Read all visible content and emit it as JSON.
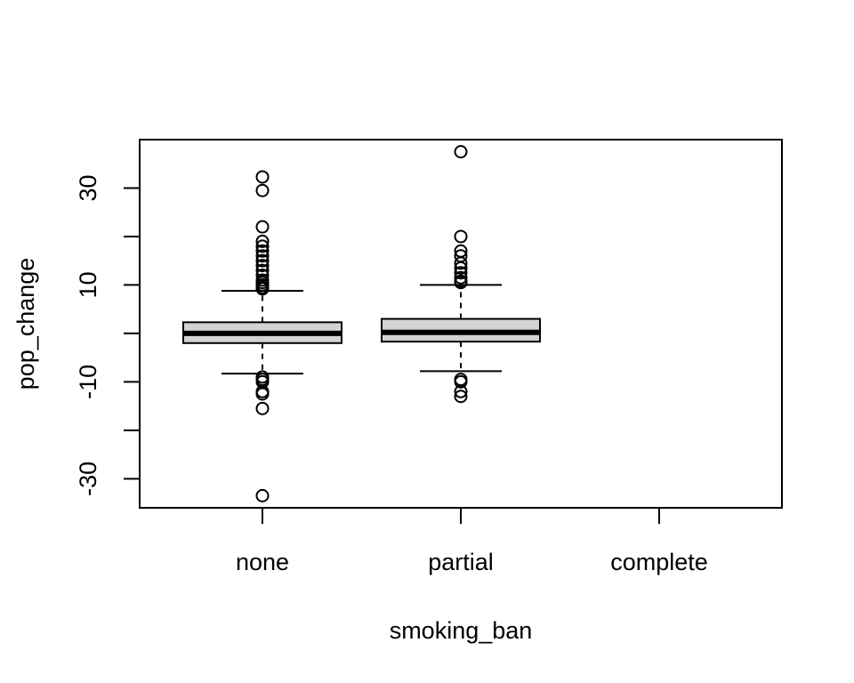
{
  "chart_data": {
    "type": "boxplot",
    "title": "",
    "xlabel": "smoking_ban",
    "ylabel": "pop_change",
    "categories": [
      "none",
      "partial",
      "complete"
    ],
    "ylim": [
      -36,
      40
    ],
    "yticks": [
      -30,
      -20,
      -10,
      0,
      10,
      20,
      30
    ],
    "yticklabels": [
      "-30",
      "",
      "-10",
      "",
      "10",
      "",
      "30"
    ],
    "grid": false,
    "legend": "none",
    "box_fill": "#d3d3d3",
    "line_color": "#000000",
    "boxes": [
      {
        "category": "none",
        "whisker_low": -8.3,
        "q1": -2.0,
        "median": 0.0,
        "q3": 2.3,
        "whisker_high": 8.8,
        "outliers": [
          32.3,
          29.5,
          22.0,
          19.0,
          18.0,
          17.0,
          16.0,
          15.0,
          14.0,
          13.0,
          12.0,
          11.0,
          10.5,
          10.0,
          9.5,
          9.2,
          -9.0,
          -9.5,
          -10.0,
          -12.0,
          -12.5,
          -15.5,
          -33.5
        ]
      },
      {
        "category": "partial",
        "whisker_low": -7.8,
        "q1": -1.7,
        "median": 0.2,
        "q3": 3.0,
        "whisker_high": 10.0,
        "outliers": [
          37.5,
          20.0,
          17.0,
          16.0,
          14.5,
          13.5,
          12.5,
          11.5,
          10.8,
          10.5,
          -9.5,
          -10.0,
          -12.0,
          -13.0
        ]
      },
      {
        "category": "complete",
        "empty": true
      }
    ]
  }
}
